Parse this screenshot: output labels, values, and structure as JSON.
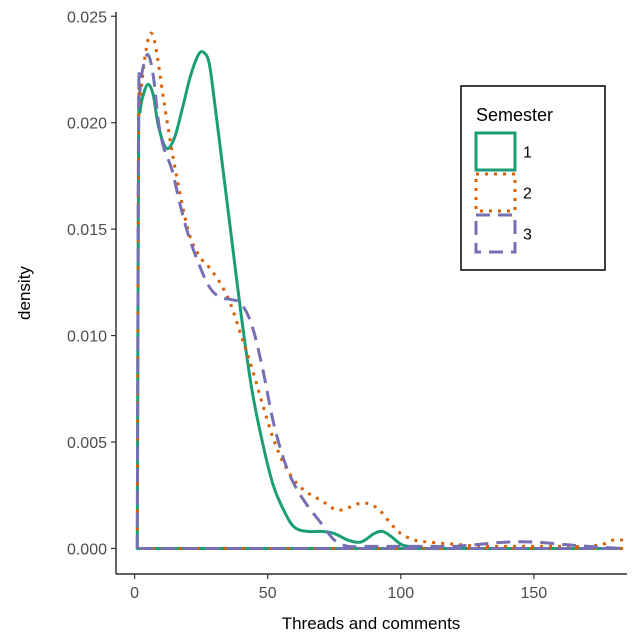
{
  "chart_data": {
    "type": "line",
    "subtype": "density",
    "xlabel": "Threads and comments",
    "ylabel": "density",
    "xlim": [
      -7,
      185
    ],
    "ylim": [
      -0.0012,
      0.0252
    ],
    "x_ticks": [
      0,
      50,
      100,
      150
    ],
    "x_tick_labels": [
      "0",
      "50",
      "100",
      "150"
    ],
    "y_ticks": [
      0,
      0.005,
      0.01,
      0.015,
      0.02,
      0.025
    ],
    "y_tick_labels": [
      "0.000",
      "0.005",
      "0.010",
      "0.015",
      "0.020",
      "0.025"
    ],
    "grid": false,
    "legend": {
      "title": "Semester",
      "placement": "top-right inside",
      "entries": [
        {
          "label": "1",
          "color": "#1b9e77",
          "dash": "solid"
        },
        {
          "label": "2",
          "color": "#d95f02",
          "dash": "dotted"
        },
        {
          "label": "3",
          "color": "#7570b3",
          "dash": "dashed"
        }
      ]
    },
    "series": [
      {
        "name": "1",
        "color": "#1b9e77",
        "dash": "solid",
        "x": [
          1,
          1.5,
          2,
          3,
          5,
          7,
          9,
          12,
          15,
          18,
          21,
          24,
          26,
          28,
          30,
          33,
          36,
          40,
          44,
          48,
          52,
          56,
          60,
          65,
          70,
          75,
          80,
          85,
          90,
          93,
          96,
          100,
          103,
          110,
          120,
          140,
          160,
          183
        ],
        "y": [
          0,
          0.0195,
          0.0205,
          0.0212,
          0.0218,
          0.0213,
          0.0198,
          0.0188,
          0.0193,
          0.0207,
          0.0222,
          0.0232,
          0.0233,
          0.0228,
          0.021,
          0.018,
          0.015,
          0.011,
          0.0075,
          0.005,
          0.003,
          0.0018,
          0.001,
          0.0008,
          0.0008,
          0.0007,
          0.0004,
          0.0003,
          0.0007,
          0.0008,
          0.0006,
          0.0002,
          0.0001,
          0.0,
          0.0,
          0.0,
          0.0,
          0.0
        ]
      },
      {
        "name": "2",
        "color": "#d95f02",
        "dash": "dotted",
        "x": [
          1,
          1.5,
          2,
          4,
          6,
          8,
          11,
          15,
          20,
          24,
          28,
          32,
          36,
          40,
          44,
          48,
          52,
          56,
          60,
          64,
          68,
          72,
          76,
          80,
          84,
          88,
          92,
          96,
          100,
          105,
          110,
          120,
          130,
          140,
          150,
          160,
          170,
          176,
          180,
          183
        ],
        "y": [
          0,
          0.02,
          0.021,
          0.0232,
          0.0242,
          0.0235,
          0.021,
          0.018,
          0.015,
          0.0138,
          0.0132,
          0.0125,
          0.0115,
          0.01,
          0.0085,
          0.0068,
          0.0052,
          0.004,
          0.0032,
          0.0027,
          0.0024,
          0.0021,
          0.0018,
          0.0019,
          0.0021,
          0.0021,
          0.0018,
          0.0012,
          0.0007,
          0.0004,
          0.0003,
          0.0002,
          0.0001,
          0.0001,
          0.0001,
          0.0001,
          0.0001,
          0.0002,
          0.0004,
          0.0004
        ]
      },
      {
        "name": "3",
        "color": "#7570b3",
        "dash": "dashed",
        "x": [
          1,
          1.5,
          2,
          3,
          5,
          7,
          9,
          11,
          14,
          17,
          20,
          24,
          28,
          32,
          36,
          40,
          44,
          48,
          52,
          56,
          60,
          65,
          70,
          75,
          80,
          85,
          90,
          95,
          100,
          110,
          120,
          130,
          140,
          150,
          160,
          170,
          183
        ],
        "y": [
          0,
          0.0205,
          0.0215,
          0.0225,
          0.0232,
          0.0222,
          0.02,
          0.0188,
          0.0178,
          0.0162,
          0.0148,
          0.0134,
          0.0123,
          0.0118,
          0.0117,
          0.0115,
          0.0105,
          0.0085,
          0.006,
          0.0042,
          0.003,
          0.002,
          0.0012,
          0.0004,
          0.0001,
          0.0001,
          0.0001,
          0.0001,
          0.0001,
          0.0001,
          0.0001,
          0.0002,
          0.0003,
          0.0003,
          0.0002,
          0.0001,
          0.0
        ]
      }
    ]
  }
}
